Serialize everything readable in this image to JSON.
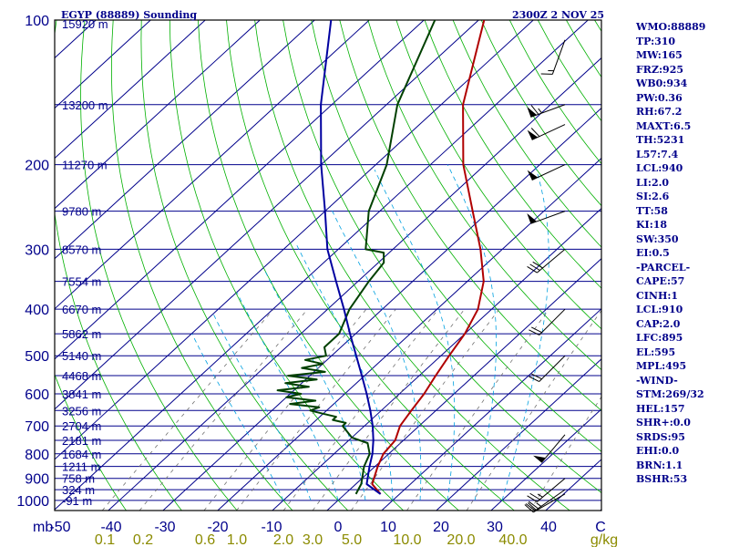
{
  "chart_data": {
    "type": "line",
    "title": "EGYP (88889) Sounding",
    "timestamp": "2300Z  2 NOV 25",
    "y_axis_label": "mb",
    "pressure_ticks": [
      "100",
      "200",
      "300",
      "400",
      "500",
      "600",
      "700",
      "800",
      "900",
      "1000"
    ],
    "x_axis_ticks": [
      "-50",
      "-40",
      "-30",
      "-20",
      "-10",
      "0",
      "10",
      "20",
      "30",
      "40",
      "C"
    ],
    "mixing_ratio_ticks": [
      "0.1",
      "0.2",
      "0.6",
      "1.0",
      "2.0",
      "3.0",
      "5.0",
      "10.0",
      "20.0",
      "40.0",
      "g/kg"
    ],
    "height_labels": [
      {
        "p": 150,
        "label": "13200 m"
      },
      {
        "p": 200,
        "label": "11270 m"
      },
      {
        "p": 250,
        "label": "9780 m"
      },
      {
        "p": 300,
        "label": "8570 m"
      },
      {
        "p": 350,
        "label": "7554 m"
      },
      {
        "p": 400,
        "label": "6670 m"
      },
      {
        "p": 450,
        "label": "5862 m"
      },
      {
        "p": 500,
        "label": "5140 m"
      },
      {
        "p": 550,
        "label": "4468 m"
      },
      {
        "p": 600,
        "label": "3841 m"
      },
      {
        "p": 650,
        "label": "3256 m"
      },
      {
        "p": 700,
        "label": "2704 m"
      },
      {
        "p": 750,
        "label": "2181 m"
      },
      {
        "p": 800,
        "label": "1684 m"
      },
      {
        "p": 850,
        "label": "1211 m"
      },
      {
        "p": 900,
        "label": "758 m"
      },
      {
        "p": 950,
        "label": "324 m"
      },
      {
        "p": 1000,
        "label": "-91 m"
      }
    ],
    "top_height_label": "15920 m",
    "series": [
      {
        "key": "temperature",
        "color": "#b00000",
        "points": [
          [
            970,
            6.5
          ],
          [
            925,
            3
          ],
          [
            850,
            0.5
          ],
          [
            800,
            -1
          ],
          [
            750,
            -1.5
          ],
          [
            700,
            -3.5
          ],
          [
            650,
            -4.5
          ],
          [
            600,
            -5.5
          ],
          [
            550,
            -7
          ],
          [
            500,
            -8.5
          ],
          [
            450,
            -10
          ],
          [
            400,
            -12.5
          ],
          [
            350,
            -17
          ],
          [
            300,
            -24
          ],
          [
            250,
            -33
          ],
          [
            200,
            -44
          ],
          [
            150,
            -56
          ],
          [
            100,
            -69
          ]
        ]
      },
      {
        "key": "dewpoint",
        "color": "#004000",
        "points": [
          [
            970,
            2
          ],
          [
            925,
            1
          ],
          [
            850,
            -2
          ],
          [
            800,
            -3.5
          ],
          [
            760,
            -6
          ],
          [
            740,
            -10
          ],
          [
            700,
            -14
          ],
          [
            690,
            -14
          ],
          [
            680,
            -17
          ],
          [
            670,
            -17
          ],
          [
            660,
            -20
          ],
          [
            650,
            -23
          ],
          [
            640,
            -22
          ],
          [
            630,
            -28
          ],
          [
            620,
            -24
          ],
          [
            610,
            -30
          ],
          [
            600,
            -28
          ],
          [
            590,
            -33
          ],
          [
            580,
            -28
          ],
          [
            570,
            -33
          ],
          [
            560,
            -28
          ],
          [
            550,
            -34
          ],
          [
            540,
            -28
          ],
          [
            530,
            -33
          ],
          [
            520,
            -30
          ],
          [
            510,
            -34
          ],
          [
            500,
            -31
          ],
          [
            480,
            -33
          ],
          [
            450,
            -33
          ],
          [
            400,
            -36
          ],
          [
            350,
            -38
          ],
          [
            320,
            -39
          ],
          [
            305,
            -41
          ],
          [
            300,
            -45
          ],
          [
            250,
            -52
          ],
          [
            200,
            -58
          ],
          [
            150,
            -68
          ],
          [
            100,
            -78
          ]
        ]
      },
      {
        "key": "parcel",
        "color": "#0000a0",
        "points": [
          [
            970,
            6.5
          ],
          [
            925,
            2
          ],
          [
            850,
            -1
          ],
          [
            800,
            -3
          ],
          [
            750,
            -5.5
          ],
          [
            700,
            -8.5
          ],
          [
            650,
            -12
          ],
          [
            600,
            -16
          ],
          [
            550,
            -20.5
          ],
          [
            500,
            -25.5
          ],
          [
            450,
            -31
          ],
          [
            400,
            -37
          ],
          [
            350,
            -44
          ],
          [
            300,
            -52
          ],
          [
            250,
            -60
          ],
          [
            200,
            -70
          ],
          [
            150,
            -82
          ],
          [
            100,
            -97
          ]
        ]
      }
    ]
  },
  "indices": [
    "WMO:88889",
    "TP:310",
    "MW:165",
    "FRZ:925",
    "WB0:934",
    "PW:0.36",
    "RH:67.2",
    "MAXT:6.5",
    "TH:5231",
    "L57:7.4",
    "LCL:940",
    "LI:2.0",
    "SI:2.6",
    "TT:58",
    "KI:18",
    "SW:350",
    "EI:0.5",
    "-PARCEL-",
    "CAPE:57",
    "CINH:1",
    "LCL:910",
    "CAP:2.0",
    "LFC:895",
    "EL:595",
    "MPL:495",
    "-WIND-",
    "STM:269/32",
    "HEL:157",
    "SHR+:0.0",
    "SRDS:95",
    "EHI:0.0",
    "BRN:1.1",
    "BSHR:53"
  ],
  "wind_barbs": [
    {
      "p": 110,
      "dir": 200,
      "kt": 15
    },
    {
      "p": 150,
      "dir": 250,
      "kt": 65
    },
    {
      "p": 165,
      "dir": 245,
      "kt": 60
    },
    {
      "p": 200,
      "dir": 245,
      "kt": 50
    },
    {
      "p": 250,
      "dir": 250,
      "kt": 50
    },
    {
      "p": 300,
      "dir": 230,
      "kt": 30
    },
    {
      "p": 400,
      "dir": 225,
      "kt": 20
    },
    {
      "p": 500,
      "dir": 225,
      "kt": 20
    },
    {
      "p": 730,
      "dir": 220,
      "kt": 50
    },
    {
      "p": 900,
      "dir": 230,
      "kt": 25
    },
    {
      "p": 950,
      "dir": 235,
      "kt": 25
    },
    {
      "p": 970,
      "dir": 240,
      "kt": 20
    }
  ],
  "colors": {
    "isobar": "#00008b",
    "isotherm": "#00008b",
    "dry_adiabat": "#00b000",
    "moist_adiabat": "#00a0e0",
    "mixing_ratio": "#707070",
    "temperature": "#b00000",
    "dewpoint": "#004000",
    "parcel": "#0000a0",
    "frame": "#000000"
  }
}
